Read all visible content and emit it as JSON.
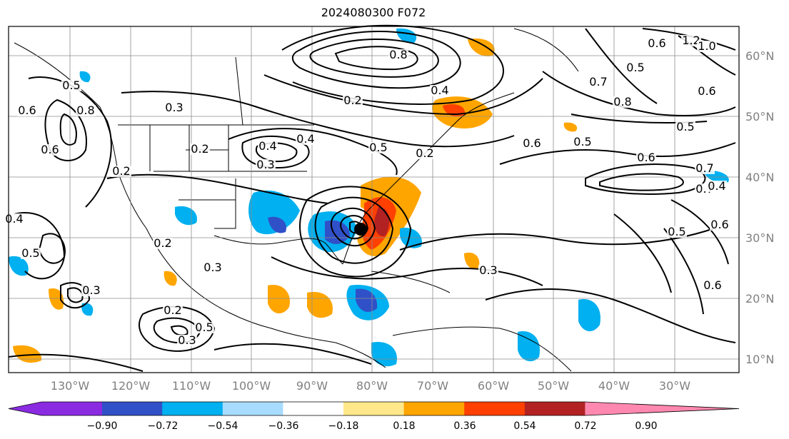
{
  "title": "2024080300 F072",
  "lon_labels": [
    "130°W",
    "120°W",
    "110°W",
    "100°W",
    "90°W",
    "80°W",
    "70°W",
    "60°W",
    "50°W",
    "40°W",
    "30°W"
  ],
  "lat_labels": [
    "60°N",
    "50°N",
    "40°N",
    "30°N",
    "20°N",
    "10°N"
  ],
  "contour_labels": [
    "0.8",
    "0.4",
    "0.2",
    "0.4",
    "0.3",
    "0.2",
    "0.4",
    "0.3",
    "0.5",
    "0.2",
    "0.6",
    "0.5",
    "0.6",
    "0.7",
    "0.8",
    "0.7",
    "0.6",
    "0.5",
    "0.7",
    "0.4",
    "0.6",
    "0.5",
    "0.3",
    "0.6",
    "0.3",
    "0.2",
    "0.3",
    "0.5",
    "0.4",
    "1.2",
    "1.0",
    "0.6",
    "0.5",
    "0.3",
    "0.5",
    "0.2",
    "0.6",
    "0.8",
    "0.5",
    "0.2",
    "0.6"
  ],
  "colorbar": {
    "ticks": [
      "−0.90",
      "−0.72",
      "−0.54",
      "−0.36",
      "−0.18",
      "0.18",
      "0.36",
      "0.54",
      "0.72",
      "0.90"
    ],
    "colors": [
      "#8a2be2",
      "#00007f",
      "#3050c8",
      "#00b0f0",
      "#a8dcff",
      "#ffffff",
      "#ffe88a",
      "#ffa500",
      "#ff4000",
      "#b22222",
      "#ff88b0"
    ]
  }
}
